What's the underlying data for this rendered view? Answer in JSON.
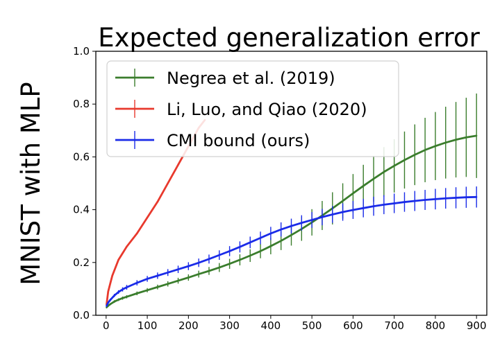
{
  "chart_data": {
    "type": "line",
    "title": "Expected generalization error",
    "xlabel": "",
    "ylabel": "MNIST with MLP",
    "xlim": [
      -25,
      925
    ],
    "ylim": [
      0.0,
      1.0
    ],
    "xticks": [
      0,
      100,
      200,
      300,
      400,
      500,
      600,
      700,
      800,
      900
    ],
    "yticks": [
      0.0,
      0.2,
      0.4,
      0.6,
      0.8,
      1.0
    ],
    "xtick_labels": [
      "0",
      "100",
      "200",
      "300",
      "400",
      "500",
      "600",
      "700",
      "800",
      "900"
    ],
    "ytick_labels": [
      "0.0",
      "0.2",
      "0.4",
      "0.6",
      "0.8",
      "1.0"
    ],
    "legend_position": "top-left",
    "grid": false,
    "series": [
      {
        "name": "Negrea et al. (2019)",
        "color": "#3a7d2c",
        "x": [
          1,
          5,
          10,
          20,
          30,
          40,
          50,
          75,
          100,
          125,
          150,
          175,
          200,
          225,
          250,
          275,
          300,
          325,
          350,
          375,
          400,
          425,
          450,
          475,
          500,
          525,
          550,
          575,
          600,
          625,
          650,
          675,
          700,
          725,
          750,
          775,
          800,
          825,
          850,
          875,
          900
        ],
        "y": [
          0.03,
          0.036,
          0.042,
          0.052,
          0.059,
          0.065,
          0.07,
          0.083,
          0.095,
          0.107,
          0.119,
          0.131,
          0.143,
          0.156,
          0.168,
          0.181,
          0.195,
          0.21,
          0.226,
          0.243,
          0.262,
          0.282,
          0.304,
          0.327,
          0.352,
          0.378,
          0.405,
          0.433,
          0.462,
          0.49,
          0.517,
          0.543,
          0.566,
          0.588,
          0.608,
          0.626,
          0.641,
          0.654,
          0.665,
          0.674,
          0.68
        ],
        "error": [
          0.004,
          0.004,
          0.004,
          0.005,
          0.005,
          0.006,
          0.006,
          0.007,
          0.008,
          0.009,
          0.01,
          0.011,
          0.012,
          0.013,
          0.015,
          0.017,
          0.019,
          0.021,
          0.024,
          0.027,
          0.031,
          0.035,
          0.04,
          0.045,
          0.05,
          0.055,
          0.061,
          0.067,
          0.073,
          0.08,
          0.087,
          0.094,
          0.101,
          0.108,
          0.115,
          0.122,
          0.129,
          0.136,
          0.143,
          0.15,
          0.16
        ]
      },
      {
        "name": "Li, Luo, and Qiao (2020)",
        "color": "#e8392d",
        "x": [
          1,
          5,
          10,
          15,
          20,
          25,
          30,
          40,
          50,
          60,
          75,
          100,
          125,
          150,
          175,
          200,
          225,
          240
        ],
        "y": [
          0.04,
          0.09,
          0.12,
          0.15,
          0.17,
          0.19,
          0.21,
          0.235,
          0.26,
          0.28,
          0.31,
          0.37,
          0.43,
          0.5,
          0.57,
          0.64,
          0.71,
          0.74
        ],
        "error": [
          0.003,
          0.003,
          0.003,
          0.003,
          0.003,
          0.003,
          0.003,
          0.003,
          0.003,
          0.003,
          0.003,
          0.003,
          0.003,
          0.003,
          0.003,
          0.003,
          0.003,
          0.003
        ]
      },
      {
        "name": "CMI bound (ours)",
        "color": "#1a2be8",
        "x": [
          1,
          5,
          10,
          20,
          30,
          40,
          50,
          75,
          100,
          125,
          150,
          175,
          200,
          225,
          250,
          275,
          300,
          325,
          350,
          375,
          400,
          425,
          450,
          475,
          500,
          525,
          550,
          575,
          600,
          625,
          650,
          675,
          700,
          725,
          750,
          775,
          800,
          825,
          850,
          875,
          900
        ],
        "y": [
          0.035,
          0.048,
          0.058,
          0.075,
          0.088,
          0.098,
          0.106,
          0.123,
          0.138,
          0.15,
          0.162,
          0.174,
          0.186,
          0.199,
          0.213,
          0.228,
          0.243,
          0.259,
          0.276,
          0.293,
          0.31,
          0.325,
          0.338,
          0.35,
          0.361,
          0.372,
          0.382,
          0.391,
          0.399,
          0.406,
          0.413,
          0.419,
          0.424,
          0.429,
          0.433,
          0.437,
          0.44,
          0.443,
          0.445,
          0.447,
          0.448
        ],
        "error": [
          0.004,
          0.004,
          0.005,
          0.006,
          0.007,
          0.008,
          0.009,
          0.01,
          0.011,
          0.012,
          0.013,
          0.014,
          0.015,
          0.016,
          0.017,
          0.018,
          0.019,
          0.021,
          0.022,
          0.024,
          0.025,
          0.027,
          0.028,
          0.029,
          0.03,
          0.031,
          0.032,
          0.033,
          0.034,
          0.035,
          0.036,
          0.036,
          0.037,
          0.037,
          0.038,
          0.038,
          0.039,
          0.039,
          0.04,
          0.04,
          0.04
        ]
      }
    ]
  }
}
